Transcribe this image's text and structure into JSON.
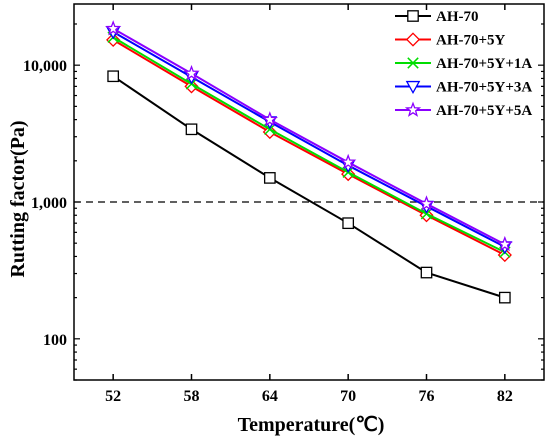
{
  "chart_data": {
    "type": "line",
    "xlabel": "Temperature(℃)",
    "ylabel": "Rutting factor(Pa)",
    "x": [
      52,
      58,
      64,
      70,
      76,
      82
    ],
    "x_tick_labels": [
      "52",
      "58",
      "64",
      "70",
      "76",
      "82"
    ],
    "xlim": [
      49,
      85
    ],
    "y_scale": "log",
    "ylim": [
      50,
      28000
    ],
    "y_ticks": [
      100,
      1000,
      10000
    ],
    "y_tick_labels": [
      "100",
      "1,000",
      "10,000"
    ],
    "reference_line": {
      "y": 1000,
      "style": "dashed",
      "color": "#000000"
    },
    "legend_position": "top-right",
    "grid": false,
    "series": [
      {
        "name": "AH-70",
        "color": "#000000",
        "marker": "square",
        "values": [
          8300,
          3400,
          1500,
          700,
          305,
          200
        ]
      },
      {
        "name": "AH-70+5Y",
        "color": "#ff0000",
        "marker": "diamond",
        "values": [
          15300,
          7000,
          3250,
          1600,
          800,
          410
        ]
      },
      {
        "name": "AH-70+5Y+1A",
        "color": "#00dd00",
        "marker": "x",
        "values": [
          16000,
          7300,
          3400,
          1650,
          820,
          430
        ]
      },
      {
        "name": "AH-70+5Y+3A",
        "color": "#0000ff",
        "marker": "triangle-down",
        "values": [
          17500,
          8200,
          3850,
          1850,
          930,
          470
        ]
      },
      {
        "name": "AH-70+5Y+5A",
        "color": "#8b00ff",
        "marker": "star",
        "values": [
          18500,
          8700,
          4000,
          1950,
          970,
          490
        ]
      }
    ]
  }
}
